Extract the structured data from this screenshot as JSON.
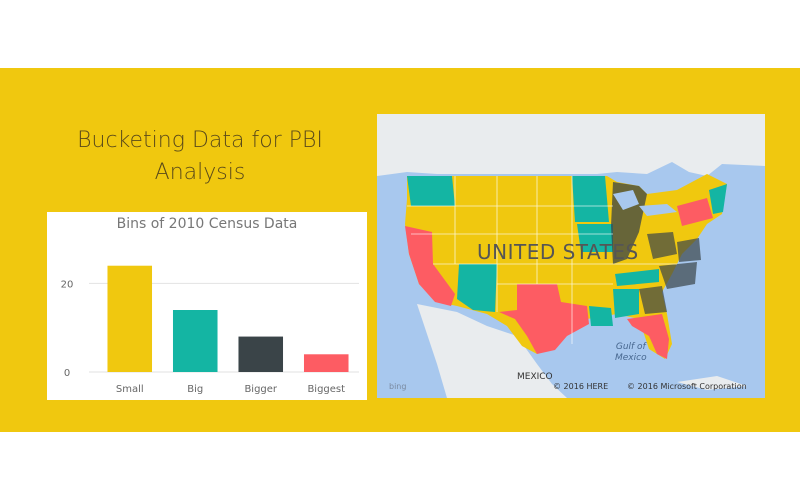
{
  "page": {
    "title_line1": "Bucketing Data for PBI",
    "title_line2": "Analysis"
  },
  "colors": {
    "panel": "#f0c80f",
    "small": "#f0c80f",
    "big": "#14b5a3",
    "bigger": "#3a4448",
    "biggest": "#fd5c63",
    "water": "#a8c8ee",
    "land": "#e9ecee"
  },
  "map": {
    "country_label": "UNITED STATES",
    "gulf_label_line1": "Gulf of",
    "gulf_label_line2": "Mexico",
    "mexico_label": "MEXICO",
    "bing_label": "bing",
    "copyright_here": "© 2016 HERE",
    "copyright_ms": "© 2016 Microsoft Corporation"
  },
  "chart_data": {
    "type": "bar",
    "title": "Bins of 2010 Census Data",
    "categories": [
      "Small",
      "Big",
      "Bigger",
      "Biggest"
    ],
    "values": [
      24,
      14,
      8,
      4
    ],
    "colors": [
      "#f0c80f",
      "#14b5a3",
      "#3a4448",
      "#fd5c63"
    ],
    "yticks": [
      0,
      20
    ],
    "ylim": [
      0,
      28
    ],
    "xlabel": "",
    "ylabel": "",
    "grid": true
  }
}
